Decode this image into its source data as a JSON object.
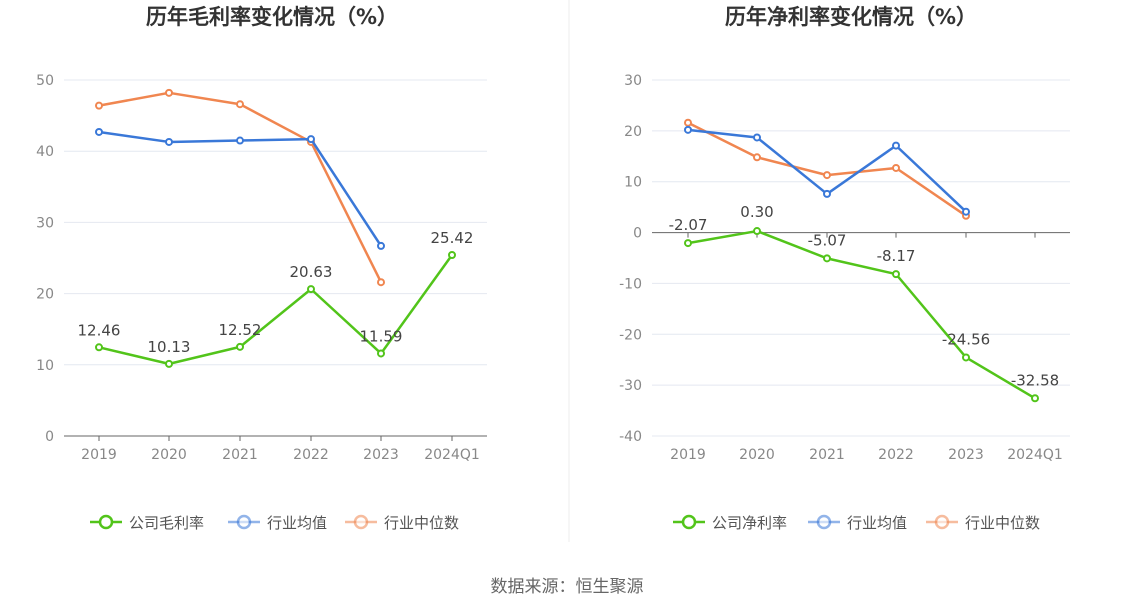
{
  "colors": {
    "company": "#52c41a",
    "industry_avg": "#3a78d8",
    "industry_median": "#f08650",
    "grid": "#e4e8f0",
    "axis": "#666666"
  },
  "source_note": "数据来源：恒生聚源",
  "chart_data": [
    {
      "type": "line",
      "title": "历年毛利率变化情况（%）",
      "categories": [
        "2019",
        "2020",
        "2021",
        "2022",
        "2023",
        "2024Q1"
      ],
      "ylim": [
        0,
        50
      ],
      "yticks": [
        0,
        10,
        20,
        30,
        40,
        50
      ],
      "grid": true,
      "legend_position": "bottom",
      "series": [
        {
          "name": "公司毛利率",
          "key": "company",
          "values": [
            12.46,
            10.13,
            12.52,
            20.63,
            11.59,
            25.42
          ],
          "labels": [
            "12.46",
            "10.13",
            "12.52",
            "20.63",
            "11.59",
            "25.42"
          ]
        },
        {
          "name": "行业均值",
          "key": "industry_avg",
          "values": [
            42.7,
            41.3,
            41.5,
            41.7,
            26.7,
            null
          ]
        },
        {
          "name": "行业中位数",
          "key": "industry_median",
          "values": [
            46.4,
            48.2,
            46.6,
            41.3,
            21.6,
            null
          ]
        }
      ]
    },
    {
      "type": "line",
      "title": "历年净利率变化情况（%）",
      "categories": [
        "2019",
        "2020",
        "2021",
        "2022",
        "2023",
        "2024Q1"
      ],
      "ylim": [
        -40,
        30
      ],
      "yticks": [
        -40,
        -30,
        -20,
        -10,
        0,
        10,
        20,
        30
      ],
      "grid": true,
      "legend_position": "bottom",
      "series": [
        {
          "name": "公司净利率",
          "key": "company",
          "values": [
            -2.07,
            0.3,
            -5.07,
            -8.17,
            -24.56,
            -32.58
          ],
          "labels": [
            "-2.07",
            "0.30",
            "-5.07",
            "-8.17",
            "-24.56",
            "-32.58"
          ]
        },
        {
          "name": "行业均值",
          "key": "industry_avg",
          "values": [
            20.2,
            18.7,
            7.6,
            17.1,
            4.1,
            null
          ]
        },
        {
          "name": "行业中位数",
          "key": "industry_median",
          "values": [
            21.6,
            14.8,
            11.3,
            12.7,
            3.3,
            null
          ]
        }
      ]
    }
  ]
}
